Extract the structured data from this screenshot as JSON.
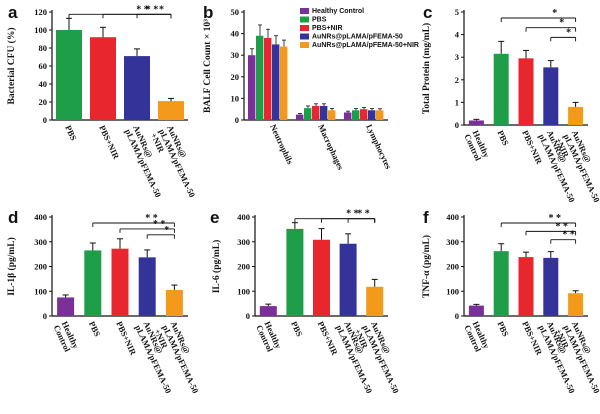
{
  "colors": {
    "Healthy Control": "#7b2f99",
    "PBS": "#1f9e4a",
    "PBS+NIR": "#e8262e",
    "AuNRs@pLAMA/pFEMA-50": "#333399",
    "AuNRs@pLAMA/pFEMA-50+NIR": "#f39a1a"
  },
  "chart_data": [
    {
      "panel": "a",
      "type": "bar",
      "ylabel": "Bacterial CFU (%)",
      "ylim": [
        0,
        120
      ],
      "yticks": [
        "0",
        "20",
        "40",
        "60",
        "80",
        "100",
        "120"
      ],
      "categories": [
        "PBS",
        "PBS+NIR",
        "AuNRs@ pLAMA/pFEMA-50",
        "AuNRs@ pLAMA/pFEMA-50 +NIR"
      ],
      "category_colors": [
        "#1f9e4a",
        "#e8262e",
        "#333399",
        "#f39a1a"
      ],
      "values": [
        100,
        92,
        71,
        21
      ],
      "errors": [
        13,
        11,
        8,
        3
      ],
      "significance": [
        {
          "from": 0,
          "to": 3,
          "label": "* *"
        },
        {
          "from": 1,
          "to": 3,
          "label": "* *"
        },
        {
          "from": 2,
          "to": 3,
          "label": "*"
        }
      ]
    },
    {
      "panel": "b",
      "type": "bar",
      "ylabel": "BALF Cell Count × 10³",
      "ylim": [
        0,
        50
      ],
      "yticks": [
        "0",
        "10",
        "20",
        "30",
        "40",
        "50"
      ],
      "categories": [
        "Neutrophils",
        "Macrophages",
        "Lymphocytes"
      ],
      "series": [
        {
          "name": "Healthy Control",
          "values": [
            30,
            2.5,
            3.5
          ],
          "errors": [
            3,
            0.5,
            0.6
          ]
        },
        {
          "name": "PBS",
          "values": [
            39,
            5.5,
            4.5
          ],
          "errors": [
            5,
            1,
            0.8
          ]
        },
        {
          "name": "PBS+NIR",
          "values": [
            38,
            6.5,
            5
          ],
          "errors": [
            4,
            1,
            0.8
          ]
        },
        {
          "name": "AuNRs@pLAMA/pFEMA-50",
          "values": [
            35,
            6.5,
            4.5
          ],
          "errors": [
            4,
            1,
            0.8
          ]
        },
        {
          "name": "AuNRs@pLAMA/pFEMA-50+NIR",
          "values": [
            34,
            4.5,
            4.5
          ],
          "errors": [
            3,
            0.8,
            0.7
          ]
        }
      ],
      "legend_position": "top-right"
    },
    {
      "panel": "c",
      "type": "bar",
      "ylabel": "Total Protein (mg/mL)",
      "ylim": [
        0,
        5
      ],
      "yticks": [
        "0",
        "1",
        "2",
        "3",
        "4",
        "5"
      ],
      "categories": [
        "Healthy Control",
        "PBS",
        "PBS+NIR",
        "AuNRs@ pLAMA/pFEMA-50",
        "AuNRs@ pLAMA/pFEMA-50 +NIR"
      ],
      "category_colors": [
        "#7b2f99",
        "#1f9e4a",
        "#e8262e",
        "#333399",
        "#f39a1a"
      ],
      "values": [
        0.2,
        3.15,
        2.95,
        2.55,
        0.8
      ],
      "errors": [
        0.05,
        0.55,
        0.35,
        0.3,
        0.2
      ],
      "significance": [
        {
          "from": 1,
          "to": 4,
          "label": "*"
        },
        {
          "from": 2,
          "to": 4,
          "label": "*"
        },
        {
          "from": 3,
          "to": 4,
          "label": "*"
        }
      ]
    },
    {
      "panel": "d",
      "type": "bar",
      "ylabel": "IL-1β (pg/mL)",
      "ylim": [
        0,
        400
      ],
      "yticks": [
        "0",
        "100",
        "200",
        "300",
        "400"
      ],
      "categories": [
        "Healthy Control",
        "PBS",
        "PBS+NIR",
        "AuNRs@ pLAMA/pFEMA-50",
        "AuNRs@ pLAMA/pFEMA-50 +NIR"
      ],
      "category_colors": [
        "#7b2f99",
        "#1f9e4a",
        "#e8262e",
        "#333399",
        "#f39a1a"
      ],
      "values": [
        75,
        265,
        272,
        237,
        105
      ],
      "errors": [
        10,
        30,
        40,
        30,
        20
      ],
      "significance": [
        {
          "from": 1,
          "to": 4,
          "label": "* *"
        },
        {
          "from": 2,
          "to": 4,
          "label": "* *"
        },
        {
          "from": 3,
          "to": 4,
          "label": "*"
        }
      ]
    },
    {
      "panel": "e",
      "type": "bar",
      "ylabel": "IL-6 (pg/mL)",
      "ylim": [
        0,
        400
      ],
      "yticks": [
        "0",
        "100",
        "200",
        "300",
        "400"
      ],
      "categories": [
        "Healthy Control",
        "PBS",
        "PBS+NIR",
        "AuNRs@ pLAMA/pFEMA-50",
        "AuNRs@ pLAMA/pFEMA-50 +NIR"
      ],
      "category_colors": [
        "#7b2f99",
        "#1f9e4a",
        "#e8262e",
        "#333399",
        "#f39a1a"
      ],
      "values": [
        40,
        352,
        308,
        292,
        118
      ],
      "errors": [
        8,
        25,
        45,
        40,
        30
      ],
      "significance": [
        {
          "from": 1,
          "to": 4,
          "label": "* *"
        },
        {
          "from": 2,
          "to": 4,
          "label": "*"
        },
        {
          "from": 3,
          "to": 4,
          "label": "*"
        }
      ]
    },
    {
      "panel": "f",
      "type": "bar",
      "ylabel": "TNF-α (pg/mL)",
      "ylim": [
        0,
        400
      ],
      "yticks": [
        "0",
        "100",
        "200",
        "300",
        "400"
      ],
      "categories": [
        "Healthy Control",
        "PBS",
        "PBS+NIR",
        "AuNRs@ pLAMA/pFEMA-50",
        "AuNRs@ pLAMA/pFEMA-50 +NIR"
      ],
      "category_colors": [
        "#7b2f99",
        "#1f9e4a",
        "#e8262e",
        "#333399",
        "#f39a1a"
      ],
      "values": [
        42,
        262,
        238,
        235,
        92
      ],
      "errors": [
        5,
        30,
        20,
        25,
        10
      ],
      "significance": [
        {
          "from": 1,
          "to": 4,
          "label": "* *"
        },
        {
          "from": 2,
          "to": 4,
          "label": "* *"
        },
        {
          "from": 3,
          "to": 4,
          "label": "* *"
        }
      ]
    }
  ]
}
